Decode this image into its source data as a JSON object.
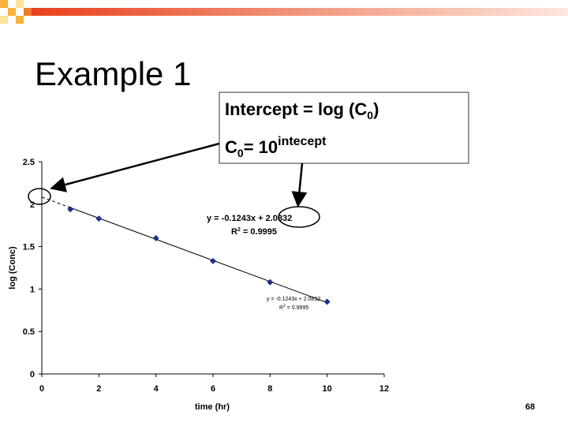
{
  "slide": {
    "title": "Example 1",
    "page_number": "68",
    "box_line1": [
      "Intercept = log (C",
      "0",
      ")"
    ],
    "box_line2": [
      "C",
      "0",
      "= 10",
      "intecept"
    ]
  },
  "chart_data": {
    "type": "scatter",
    "x": [
      1,
      2,
      4,
      6,
      8,
      10
    ],
    "values": [
      1.94,
      1.83,
      1.6,
      1.33,
      1.08,
      0.85
    ],
    "color": "#1f2f8a",
    "xlim": [
      0,
      12
    ],
    "ylim": [
      0,
      2.5
    ],
    "xticks": [
      0,
      2,
      4,
      6,
      8,
      10,
      12
    ],
    "yticks": [
      0,
      0.5,
      1,
      1.5,
      2,
      2.5
    ],
    "xlabel": "time (hr)",
    "ylabel": "log (Conc)",
    "trendline": {
      "slope": -0.1243,
      "intercept": 2.0832,
      "equation": "y = -0.1243x + 2.0832",
      "r2": [
        "R",
        "2",
        " = 0.9995"
      ],
      "small_equation": "y = -0.1243x + 2.0832",
      "small_r2": [
        "R",
        "2",
        " = 0.9995"
      ]
    }
  }
}
